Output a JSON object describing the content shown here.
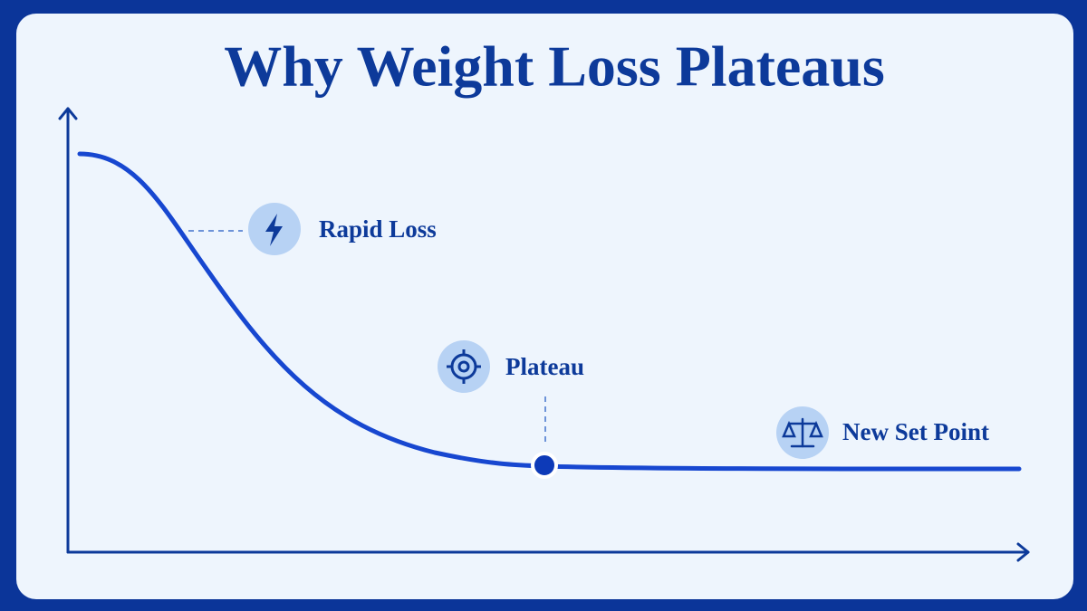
{
  "title": "Why Weight Loss Plateaus",
  "labels": {
    "rapid_loss": "Rapid Loss",
    "plateau": "Plateau",
    "new_set_point": "New Set Point"
  }
}
